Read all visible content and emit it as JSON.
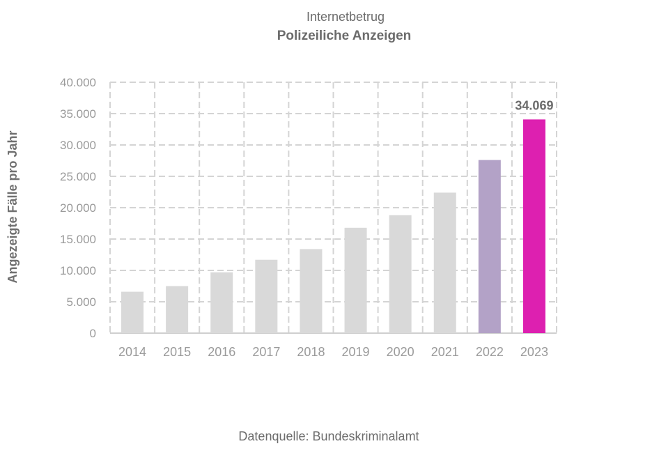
{
  "chart_data": {
    "type": "bar",
    "title": "Internetbetrug",
    "subtitle": "Polizeiliche Anzeigen",
    "ylabel": "Angezeigte Fälle pro Jahr",
    "source": "Datenquelle: Bundeskriminalamt",
    "categories": [
      "2014",
      "2015",
      "2016",
      "2017",
      "2018",
      "2019",
      "2020",
      "2021",
      "2022",
      "2023"
    ],
    "values": [
      6600,
      7500,
      9700,
      11700,
      13400,
      16800,
      18800,
      22400,
      27600,
      34069
    ],
    "bar_colors": [
      "#d9d9d9",
      "#d9d9d9",
      "#d9d9d9",
      "#d9d9d9",
      "#d9d9d9",
      "#d9d9d9",
      "#d9d9d9",
      "#d9d9d9",
      "#b3a2c7",
      "#dd20b0"
    ],
    "data_labels": [
      {
        "index": 9,
        "text": "34.069"
      }
    ],
    "ylim": [
      0,
      40000
    ],
    "yticks": [
      0,
      5000,
      10000,
      15000,
      20000,
      25000,
      30000,
      35000,
      40000
    ],
    "ytick_labels": [
      "0",
      "5.000",
      "10.000",
      "15.000",
      "20.000",
      "25.000",
      "30.000",
      "35.000",
      "40.000"
    ],
    "grid": true,
    "legend": "none"
  }
}
